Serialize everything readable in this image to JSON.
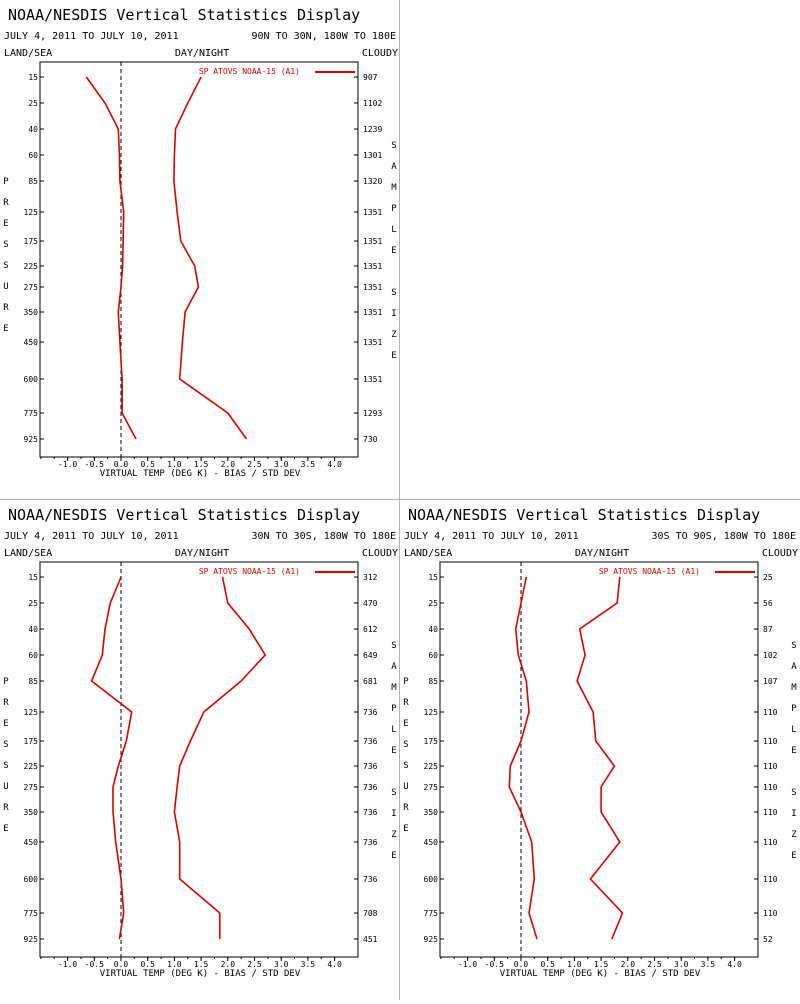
{
  "chart_data": [
    {
      "type": "line",
      "title": "NOAA/NESDIS Vertical Statistics Display",
      "subtitle_left": "JULY 4, 2011 TO JULY 10, 2011",
      "subtitle_right": "90N TO 30N, 180W TO 180E",
      "label_left": "LAND/SEA",
      "label_mid": "DAY/NIGHT",
      "label_right": "CLOUDY",
      "ylabel": "PRESSURE",
      "y2label": "SAMPLE SIZE",
      "xlabel": "VIRTUAL TEMP (DEG K) - BIAS / STD DEV",
      "xlim": [
        -1.5,
        4.0
      ],
      "xticks": [
        "-1.0",
        "-0.5",
        "0.0",
        "0.5",
        "1.0",
        "1.5",
        "2.0",
        "2.5",
        "3.0",
        "3.5",
        "4.0"
      ],
      "pressure_levels": [
        "15",
        "25",
        "40",
        "60",
        "85",
        "125",
        "175",
        "225",
        "275",
        "350",
        "450",
        "600",
        "775",
        "925"
      ],
      "sample_size": [
        "907",
        "1102",
        "1239",
        "1301",
        "1320",
        "1351",
        "1351",
        "1351",
        "1351",
        "1351",
        "1351",
        "1351",
        "1293",
        "730"
      ],
      "legend": "SP ATOVS NOAA-15 (A1)",
      "series_color": "#dd0000",
      "series": [
        {
          "name": "bias",
          "values": [
            -0.65,
            -0.3,
            -0.05,
            -0.03,
            -0.02,
            0.05,
            0.04,
            0.03,
            0.0,
            -0.05,
            -0.02,
            0.02,
            0.02,
            0.28
          ]
        },
        {
          "name": "std_dev",
          "values": [
            1.5,
            1.25,
            1.02,
            1.0,
            0.99,
            1.05,
            1.12,
            1.38,
            1.45,
            1.2,
            1.15,
            1.1,
            2.0,
            2.35
          ]
        }
      ]
    },
    {
      "type": "line",
      "title": "NOAA/NESDIS Vertical Statistics Display",
      "subtitle_left": "JULY 4, 2011 TO JULY 10, 2011",
      "subtitle_right": "30N TO 30S, 180W TO 180E",
      "label_left": "LAND/SEA",
      "label_mid": "DAY/NIGHT",
      "label_right": "CLOUDY",
      "ylabel": "PRESSURE",
      "y2label": "SAMPLE SIZE",
      "xlabel": "VIRTUAL TEMP (DEG K) - BIAS / STD DEV",
      "xlim": [
        -1.5,
        4.0
      ],
      "xticks": [
        "-1.0",
        "-0.5",
        "0.0",
        "0.5",
        "1.0",
        "1.5",
        "2.0",
        "2.5",
        "3.0",
        "3.5",
        "4.0"
      ],
      "pressure_levels": [
        "15",
        "25",
        "40",
        "60",
        "85",
        "125",
        "175",
        "225",
        "275",
        "350",
        "450",
        "600",
        "775",
        "925"
      ],
      "sample_size": [
        "312",
        "470",
        "612",
        "649",
        "681",
        "736",
        "736",
        "736",
        "736",
        "736",
        "736",
        "736",
        "708",
        "451"
      ],
      "legend": "SP ATOVS NOAA-15 (A1)",
      "series_color": "#dd0000",
      "series": [
        {
          "name": "bias",
          "values": [
            0.0,
            -0.2,
            -0.3,
            -0.35,
            -0.55,
            0.2,
            0.1,
            -0.05,
            -0.15,
            -0.15,
            -0.1,
            0.0,
            0.05,
            -0.03
          ]
        },
        {
          "name": "std_dev",
          "values": [
            1.9,
            2.0,
            2.4,
            2.7,
            2.25,
            1.55,
            1.3,
            1.1,
            1.05,
            1.0,
            1.1,
            1.1,
            1.85,
            1.85
          ]
        }
      ]
    },
    {
      "type": "line",
      "title": "NOAA/NESDIS Vertical Statistics Display",
      "subtitle_left": "JULY 4, 2011 TO JULY 10, 2011",
      "subtitle_right": "30S TO 90S, 180W TO 180E",
      "label_left": "LAND/SEA",
      "label_mid": "DAY/NIGHT",
      "label_right": "CLOUDY",
      "ylabel": "PRESSURE",
      "y2label": "SAMPLE SIZE",
      "xlabel": "VIRTUAL TEMP (DEG K) - BIAS / STD DEV",
      "xlim": [
        -1.5,
        4.0
      ],
      "xticks": [
        "-1.0",
        "-0.5",
        "0.0",
        "0.5",
        "1.0",
        "1.5",
        "2.0",
        "2.5",
        "3.0",
        "3.5",
        "4.0"
      ],
      "pressure_levels": [
        "15",
        "25",
        "40",
        "60",
        "85",
        "125",
        "175",
        "225",
        "275",
        "350",
        "450",
        "600",
        "775",
        "925"
      ],
      "sample_size": [
        "25",
        "56",
        "87",
        "102",
        "107",
        "110",
        "110",
        "110",
        "110",
        "110",
        "110",
        "110",
        "110",
        "52"
      ],
      "legend": "SP ATOVS NOAA-15 (A1)",
      "series_color": "#dd0000",
      "series": [
        {
          "name": "bias",
          "values": [
            0.1,
            0.0,
            -0.1,
            -0.05,
            0.1,
            0.15,
            0.0,
            -0.2,
            -0.22,
            0.0,
            0.2,
            0.25,
            0.15,
            0.3
          ]
        },
        {
          "name": "std_dev",
          "values": [
            1.85,
            1.8,
            1.1,
            1.2,
            1.05,
            1.35,
            1.4,
            1.75,
            1.5,
            1.5,
            1.85,
            1.3,
            1.9,
            1.7
          ]
        }
      ]
    }
  ]
}
